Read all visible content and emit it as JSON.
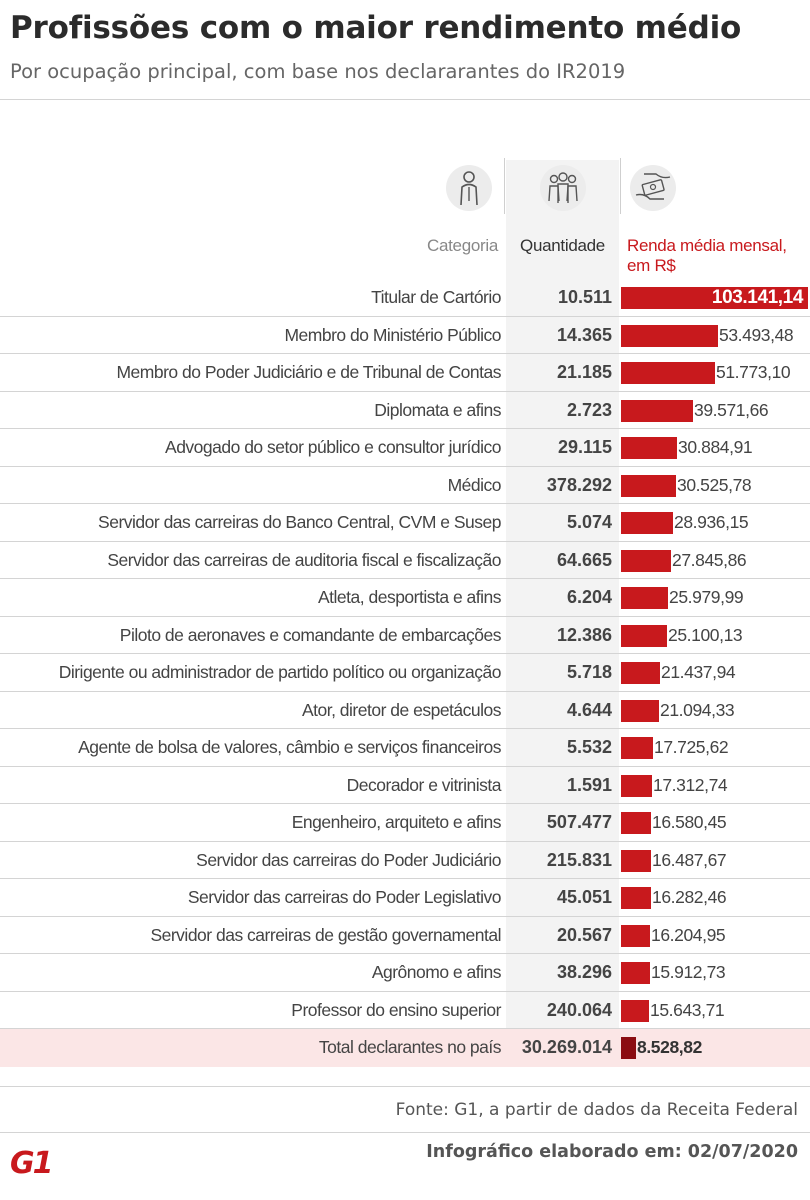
{
  "title": "Profissões com o maior rendimento médio",
  "subtitle": "Por ocupação principal, com base nos declararantes do IR2019",
  "headers": {
    "category": "Categoria",
    "quantity": "Quantidade",
    "income": "Renda média mensal, em R$"
  },
  "icons": [
    "worker-icon",
    "people-icon",
    "money-hands-icon"
  ],
  "colors": {
    "accent": "#c8191d",
    "total_bar": "#8b0d12",
    "total_bg": "#fbe6e6"
  },
  "chart_data": {
    "type": "bar",
    "orientation": "horizontal",
    "xlim": [
      0,
      103141.14
    ],
    "rows": [
      {
        "category": "Titular de Cartório",
        "quantity": "10.511",
        "label": "103.141,14",
        "value": 103141.14
      },
      {
        "category": "Membro do Ministério Público",
        "quantity": "14.365",
        "label": "53.493,48",
        "value": 53493.48
      },
      {
        "category": "Membro do Poder Judiciário e de Tribunal de Contas",
        "quantity": "21.185",
        "label": "51.773,10",
        "value": 51773.1
      },
      {
        "category": "Diplomata e afins",
        "quantity": "2.723",
        "label": "39.571,66",
        "value": 39571.66
      },
      {
        "category": "Advogado do setor público e consultor jurídico",
        "quantity": "29.115",
        "label": "30.884,91",
        "value": 30884.91
      },
      {
        "category": "Médico",
        "quantity": "378.292",
        "label": "30.525,78",
        "value": 30525.78
      },
      {
        "category": "Servidor das carreiras do Banco Central, CVM e Susep",
        "quantity": "5.074",
        "label": "28.936,15",
        "value": 28936.15
      },
      {
        "category": "Servidor das carreiras de auditoria fiscal e fiscalização",
        "quantity": "64.665",
        "label": "27.845,86",
        "value": 27845.86
      },
      {
        "category": "Atleta, desportista e afins",
        "quantity": "6.204",
        "label": "25.979,99",
        "value": 25979.99
      },
      {
        "category": "Piloto de aeronaves e comandante de embarcações",
        "quantity": "12.386",
        "label": "25.100,13",
        "value": 25100.13
      },
      {
        "category": "Dirigente ou administrador de partido político ou organização",
        "quantity": "5.718",
        "label": "21.437,94",
        "value": 21437.94
      },
      {
        "category": "Ator, diretor de espetáculos",
        "quantity": "4.644",
        "label": "21.094,33",
        "value": 21094.33
      },
      {
        "category": "Agente de bolsa de valores, câmbio e serviços financeiros",
        "quantity": "5.532",
        "label": "17.725,62",
        "value": 17725.62
      },
      {
        "category": "Decorador e vitrinista",
        "quantity": "1.591",
        "label": "17.312,74",
        "value": 17312.74
      },
      {
        "category": "Engenheiro, arquiteto e afins",
        "quantity": "507.477",
        "label": "16.580,45",
        "value": 16580.45
      },
      {
        "category": "Servidor das carreiras do Poder Judiciário",
        "quantity": "215.831",
        "label": "16.487,67",
        "value": 16487.67
      },
      {
        "category": "Servidor das carreiras do Poder Legislativo",
        "quantity": "45.051",
        "label": "16.282,46",
        "value": 16282.46
      },
      {
        "category": "Servidor das carreiras de gestão governamental",
        "quantity": "20.567",
        "label": "16.204,95",
        "value": 16204.95
      },
      {
        "category": "Agrônomo e afins",
        "quantity": "38.296",
        "label": "15.912,73",
        "value": 15912.73
      },
      {
        "category": "Professor do ensino superior",
        "quantity": "240.064",
        "label": "15.643,71",
        "value": 15643.71
      }
    ],
    "total": {
      "category": "Total declarantes no país",
      "quantity": "30.269.014",
      "label": "8.528,82",
      "value": 8528.82
    }
  },
  "source": "Fonte: G1, a partir de dados da Receita Federal",
  "credit": "Infográfico elaborado em: 02/07/2020",
  "logo": "G1"
}
